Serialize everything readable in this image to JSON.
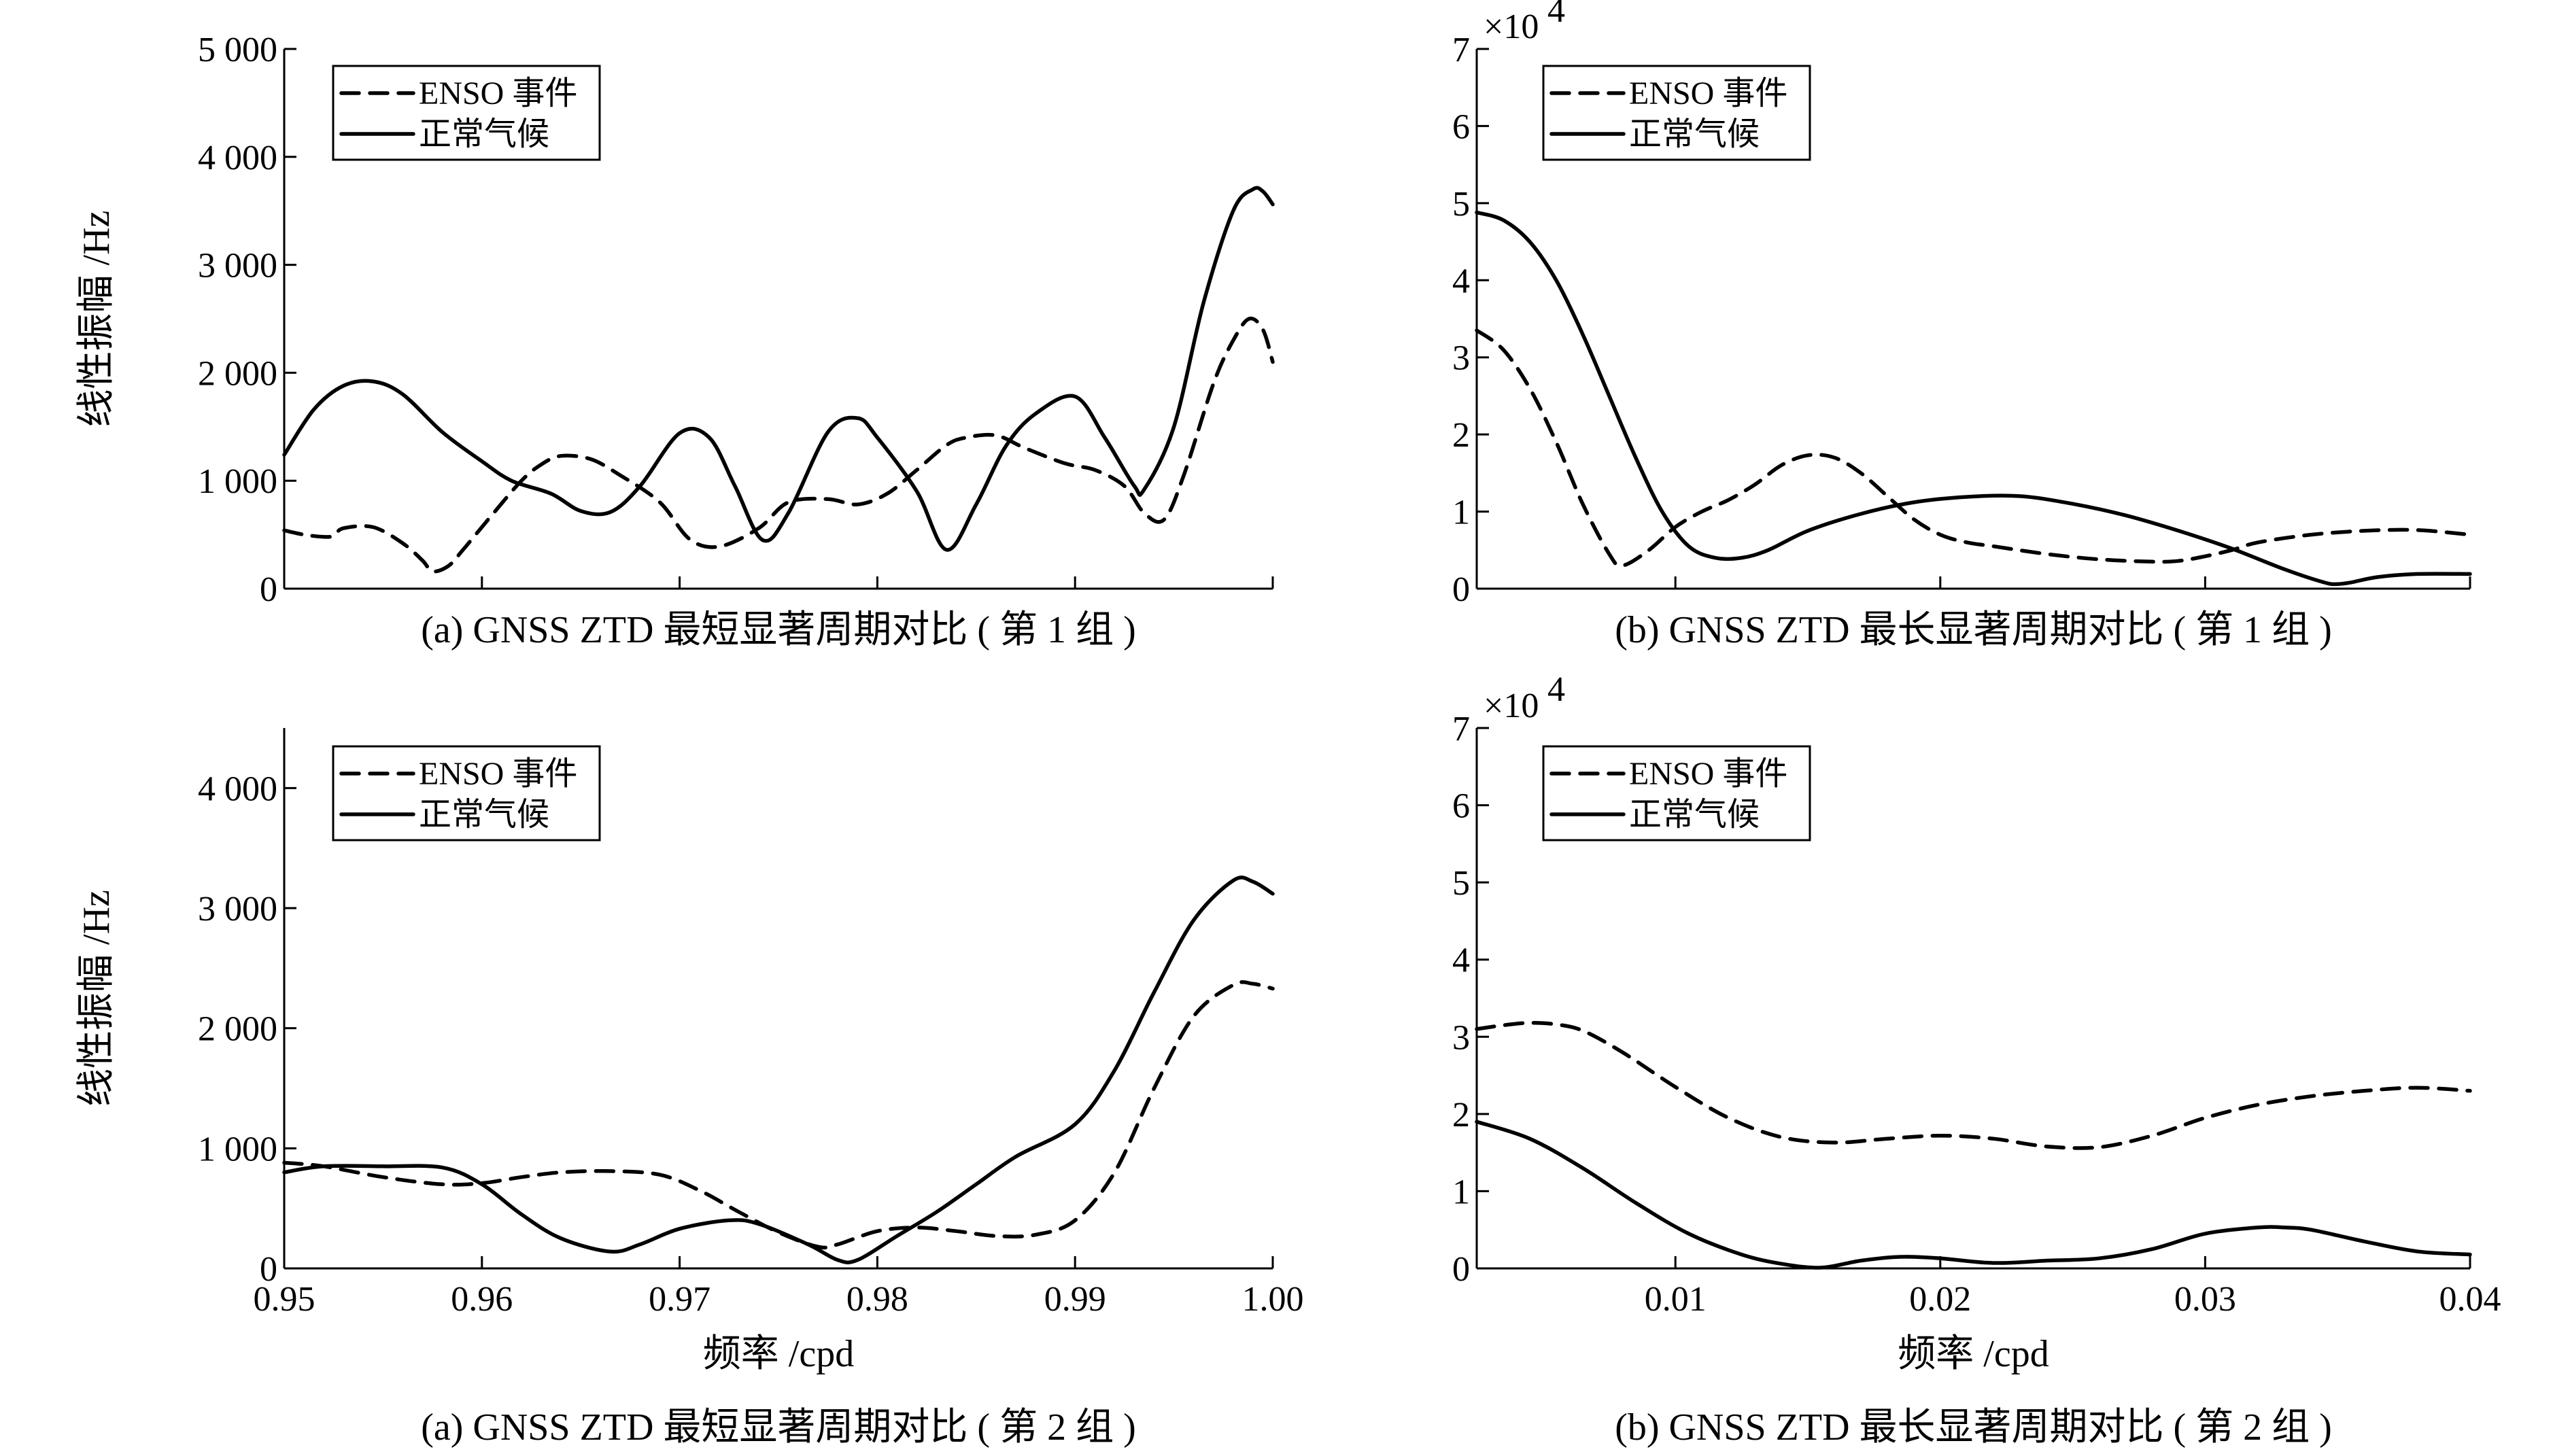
{
  "chart_data": [
    {
      "id": "a1",
      "type": "line",
      "caption": "(a) GNSS ZTD 最短显著周期对比 ( 第 1 组 )",
      "ylabel": "线性振幅 /Hz",
      "xlabel": "",
      "xlim": [
        0.95,
        1.0
      ],
      "ylim": [
        0,
        5000
      ],
      "xticks": [
        0.95,
        0.96,
        0.97,
        0.98,
        0.99,
        1.0
      ],
      "xtick_labels": [],
      "yticks": [
        0,
        1000,
        2000,
        3000,
        4000,
        5000
      ],
      "ytick_labels": [
        "0",
        "1 000",
        "2 000",
        "3 000",
        "4 000",
        "5 000"
      ],
      "exponent_label": "",
      "legend": [
        "ENSO 事件",
        "正常气候"
      ],
      "series": [
        {
          "name": "ENSO 事件",
          "style": "dashed",
          "x": [
            0.95,
            0.951,
            0.952,
            0.9525,
            0.953,
            0.9545,
            0.956,
            0.957,
            0.9575,
            0.9583,
            0.959,
            0.9605,
            0.962,
            0.963,
            0.964,
            0.9655,
            0.967,
            0.969,
            0.9705,
            0.972,
            0.974,
            0.9755,
            0.9775,
            0.979,
            0.9805,
            0.982,
            0.9835,
            0.9845,
            0.986,
            0.9875,
            0.9895,
            0.991,
            0.9925,
            0.9935,
            0.9945,
            0.9955,
            0.997,
            0.998,
            0.9988,
            0.9995,
            1.0
          ],
          "values": [
            540,
            500,
            480,
            490,
            560,
            570,
            420,
            260,
            160,
            210,
            350,
            680,
            1000,
            1150,
            1230,
            1200,
            1050,
            800,
            460,
            390,
            560,
            800,
            830,
            780,
            880,
            1100,
            1330,
            1400,
            1420,
            1300,
            1160,
            1100,
            950,
            700,
            640,
            1050,
            1900,
            2300,
            2500,
            2400,
            2100
          ]
        },
        {
          "name": "正常气候",
          "style": "solid",
          "x": [
            0.95,
            0.9515,
            0.953,
            0.9545,
            0.956,
            0.958,
            0.96,
            0.9615,
            0.9635,
            0.965,
            0.9665,
            0.968,
            0.97,
            0.9715,
            0.9728,
            0.9742,
            0.9755,
            0.9775,
            0.979,
            0.98,
            0.982,
            0.9835,
            0.985,
            0.9865,
            0.988,
            0.99,
            0.9915,
            0.993,
            0.9935,
            0.995,
            0.9965,
            0.998,
            0.999,
            0.9995,
            1.0
          ],
          "values": [
            1240,
            1660,
            1880,
            1920,
            1800,
            1450,
            1180,
            1000,
            880,
            720,
            710,
            950,
            1440,
            1400,
            950,
            450,
            700,
            1450,
            1580,
            1400,
            900,
            360,
            780,
            1320,
            1620,
            1780,
            1400,
            950,
            920,
            1500,
            2650,
            3500,
            3700,
            3680,
            3560
          ]
        }
      ]
    },
    {
      "id": "b1",
      "type": "line",
      "caption": "(b) GNSS ZTD 最长显著周期对比 ( 第 1 组 )",
      "ylabel": "",
      "xlabel": "",
      "xlim": [
        0.0025,
        0.04
      ],
      "ylim": [
        0,
        70000
      ],
      "xticks": [
        0.01,
        0.02,
        0.03,
        0.04
      ],
      "xtick_labels": [],
      "yticks": [
        0,
        10000,
        20000,
        30000,
        40000,
        50000,
        60000,
        70000
      ],
      "ytick_labels": [
        "0",
        "1",
        "2",
        "3",
        "4",
        "5",
        "6",
        "7"
      ],
      "exponent_label": "×10",
      "exponent_power": "4",
      "legend": [
        "ENSO 事件",
        "正常气候"
      ],
      "series": [
        {
          "name": "ENSO 事件",
          "style": "dashed",
          "x": [
            0.0025,
            0.0035,
            0.0045,
            0.0055,
            0.0065,
            0.0075,
            0.008,
            0.009,
            0.01,
            0.011,
            0.012,
            0.013,
            0.014,
            0.015,
            0.016,
            0.017,
            0.018,
            0.019,
            0.02,
            0.021,
            0.022,
            0.024,
            0.026,
            0.028,
            0.029,
            0.03,
            0.031,
            0.032,
            0.034,
            0.036,
            0.038,
            0.04
          ],
          "values": [
            33500,
            31000,
            26000,
            19000,
            11000,
            4500,
            3000,
            5000,
            8000,
            10000,
            11500,
            13500,
            16000,
            17300,
            17000,
            15000,
            12000,
            9000,
            7000,
            6000,
            5500,
            4500,
            3800,
            3500,
            3600,
            4200,
            5000,
            6000,
            7000,
            7500,
            7600,
            7000
          ]
        },
        {
          "name": "正常气候",
          "style": "solid",
          "x": [
            0.0025,
            0.0035,
            0.0045,
            0.0055,
            0.0065,
            0.0075,
            0.0085,
            0.0095,
            0.0105,
            0.0115,
            0.0125,
            0.0135,
            0.015,
            0.017,
            0.019,
            0.021,
            0.023,
            0.025,
            0.027,
            0.029,
            0.031,
            0.033,
            0.0345,
            0.035,
            0.0355,
            0.0365,
            0.038,
            0.04
          ],
          "values": [
            48800,
            47800,
            45000,
            40000,
            33000,
            25000,
            17000,
            10000,
            5500,
            4000,
            4000,
            5000,
            7500,
            9700,
            11200,
            11900,
            12000,
            11000,
            9500,
            7500,
            5200,
            2500,
            800,
            600,
            800,
            1500,
            1900,
            1900
          ]
        }
      ]
    },
    {
      "id": "a2",
      "type": "line",
      "caption": "(a) GNSS ZTD 最短显著周期对比 ( 第 2 组 )",
      "ylabel": "线性振幅 /Hz",
      "xlabel": "频率 /cpd",
      "xlim": [
        0.95,
        1.0
      ],
      "ylim": [
        0,
        4500
      ],
      "xticks": [
        0.95,
        0.96,
        0.97,
        0.98,
        0.99,
        1.0
      ],
      "xtick_labels": [
        "0.95",
        "0.96",
        "0.97",
        "0.98",
        "0.99",
        "1.00"
      ],
      "yticks": [
        0,
        1000,
        2000,
        3000,
        4000
      ],
      "ytick_labels": [
        "0",
        "1 000",
        "2 000",
        "3 000",
        "4 000"
      ],
      "exponent_label": "",
      "legend": [
        "ENSO 事件",
        "正常气候"
      ],
      "series": [
        {
          "name": "ENSO 事件",
          "style": "dashed",
          "x": [
            0.95,
            0.952,
            0.955,
            0.958,
            0.96,
            0.962,
            0.964,
            0.9665,
            0.969,
            0.971,
            0.973,
            0.975,
            0.977,
            0.978,
            0.98,
            0.982,
            0.984,
            0.986,
            0.988,
            0.99,
            0.992,
            0.994,
            0.996,
            0.998,
            0.999,
            1.0
          ],
          "values": [
            880,
            850,
            760,
            700,
            710,
            760,
            800,
            810,
            780,
            650,
            470,
            300,
            180,
            200,
            310,
            340,
            310,
            270,
            280,
            400,
            800,
            1500,
            2100,
            2360,
            2370,
            2330
          ]
        },
        {
          "name": "正常气候",
          "style": "solid",
          "x": [
            0.95,
            0.952,
            0.955,
            0.958,
            0.96,
            0.962,
            0.964,
            0.9665,
            0.968,
            0.97,
            0.9725,
            0.974,
            0.9765,
            0.978,
            0.979,
            0.981,
            0.983,
            0.985,
            0.987,
            0.99,
            0.992,
            0.994,
            0.996,
            0.998,
            0.999,
            1.0
          ],
          "values": [
            800,
            850,
            850,
            840,
            700,
            450,
            250,
            140,
            200,
            330,
            400,
            370,
            200,
            70,
            70,
            270,
            470,
            700,
            930,
            1200,
            1650,
            2300,
            2900,
            3230,
            3220,
            3120
          ]
        }
      ]
    },
    {
      "id": "b2",
      "type": "line",
      "caption": "(b) GNSS ZTD 最长显著周期对比 ( 第 2 组 )",
      "ylabel": "",
      "xlabel": "频率 /cpd",
      "xlim": [
        0.0025,
        0.04
      ],
      "ylim": [
        0,
        70000
      ],
      "xticks": [
        0.01,
        0.02,
        0.03,
        0.04
      ],
      "xtick_labels": [
        "0.01",
        "0.02",
        "0.03",
        "0.04"
      ],
      "yticks": [
        0,
        10000,
        20000,
        30000,
        40000,
        50000,
        60000,
        70000
      ],
      "ytick_labels": [
        "0",
        "1",
        "2",
        "3",
        "4",
        "5",
        "6",
        "7"
      ],
      "exponent_label": "×10",
      "exponent_power": "4",
      "legend": [
        "ENSO 事件",
        "正常气候"
      ],
      "series": [
        {
          "name": "ENSO 事件",
          "style": "dashed",
          "x": [
            0.0025,
            0.0035,
            0.0045,
            0.0055,
            0.0065,
            0.008,
            0.01,
            0.012,
            0.014,
            0.016,
            0.018,
            0.02,
            0.022,
            0.024,
            0.026,
            0.028,
            0.03,
            0.032,
            0.034,
            0.036,
            0.038,
            0.04
          ],
          "values": [
            31000,
            31500,
            31800,
            31600,
            30800,
            28000,
            23500,
            19500,
            17000,
            16300,
            16800,
            17200,
            16800,
            15800,
            15700,
            17200,
            19500,
            21200,
            22300,
            23000,
            23400,
            23000
          ]
        },
        {
          "name": "正常气候",
          "style": "solid",
          "x": [
            0.0025,
            0.0045,
            0.0065,
            0.0085,
            0.0105,
            0.0125,
            0.014,
            0.0155,
            0.017,
            0.0185,
            0.02,
            0.022,
            0.024,
            0.026,
            0.028,
            0.03,
            0.032,
            0.033,
            0.034,
            0.036,
            0.038,
            0.04
          ],
          "values": [
            19000,
            16800,
            13000,
            8500,
            4500,
            1800,
            600,
            100,
            1000,
            1500,
            1300,
            700,
            1000,
            1300,
            2500,
            4500,
            5300,
            5300,
            5000,
            3500,
            2200,
            1800
          ]
        }
      ]
    }
  ]
}
